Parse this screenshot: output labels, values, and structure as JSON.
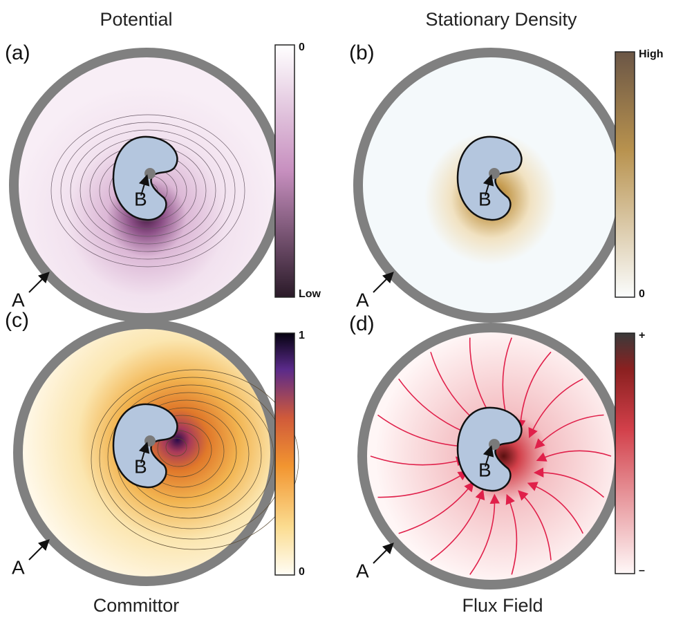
{
  "panels": [
    {
      "title": "Potential",
      "label": "(a)",
      "colorbar_top": "0",
      "colorbar_bottom": "Low",
      "point_a": "A",
      "point_b": "B"
    },
    {
      "title": "Stationary Density",
      "label": "(b)",
      "colorbar_top": "High",
      "colorbar_bottom": "0",
      "point_a": "A",
      "point_b": "B"
    },
    {
      "title": "Committor",
      "label": "(c)",
      "colorbar_top": "1",
      "colorbar_bottom": "0",
      "point_a": "A",
      "point_b": "B"
    },
    {
      "title": "Flux Field",
      "label": "(d)",
      "colorbar_top": "+",
      "colorbar_bottom": "–",
      "point_a": "A",
      "point_b": "B"
    }
  ]
}
